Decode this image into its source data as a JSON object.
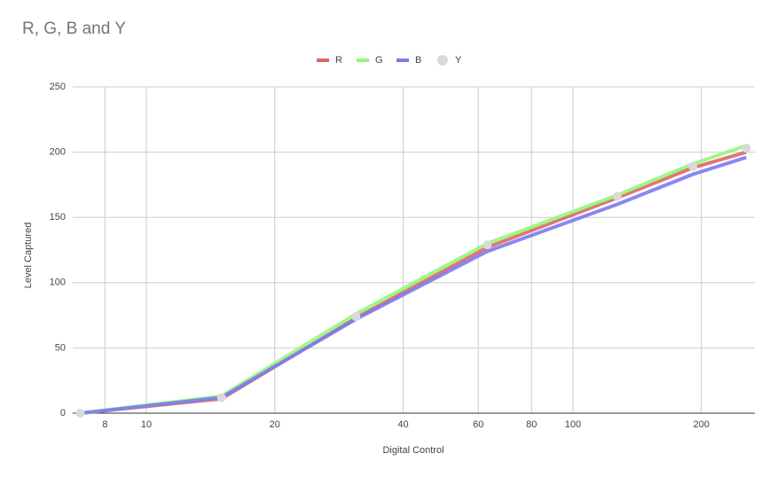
{
  "chart_data": {
    "type": "line",
    "title": "R, G, B and Y",
    "x_label": "Digital Control",
    "y_label": "Level Captured",
    "x": [
      7,
      15,
      31,
      63,
      127,
      191,
      255
    ],
    "series": [
      {
        "name": "R",
        "color": "#e06666",
        "style": "line",
        "values": [
          0,
          11,
          73,
          127,
          165,
          188,
          200
        ]
      },
      {
        "name": "G",
        "color": "#93f77a",
        "style": "line",
        "values": [
          0,
          13,
          76,
          130,
          167,
          191,
          205
        ]
      },
      {
        "name": "B",
        "color": "#7b7bf0",
        "style": "line",
        "values": [
          0,
          12,
          72,
          124,
          160,
          183,
          196
        ]
      },
      {
        "name": "Y",
        "color": "#d9d9d9",
        "style": "points",
        "values": [
          0,
          12,
          74,
          129,
          166,
          189,
          203
        ]
      }
    ],
    "xscale": "log",
    "xlim": [
      6.72,
      267
    ],
    "xticks": [
      8,
      10,
      20,
      40,
      60,
      80,
      100,
      200
    ],
    "ylim": [
      0,
      250
    ],
    "yticks": [
      0,
      50,
      100,
      150,
      200,
      250
    ],
    "grid": true,
    "legend": "top"
  }
}
